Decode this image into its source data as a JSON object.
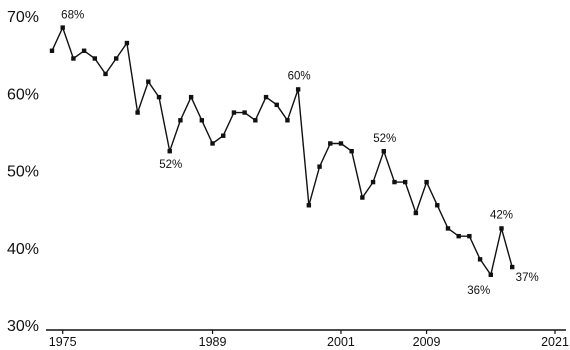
{
  "chart_data": {
    "type": "line",
    "title": "",
    "xlabel": "",
    "ylabel": "",
    "xlim": [
      1975,
      2021
    ],
    "ylim": [
      30,
      70
    ],
    "yticks": [
      30,
      40,
      50,
      60,
      70
    ],
    "ytick_labels": [
      "30%",
      "40%",
      "50%",
      "60%",
      "70%"
    ],
    "xticks": [
      1975,
      1989,
      2001,
      2009,
      2021
    ],
    "xtick_labels": [
      "1975",
      "1989",
      "2001",
      "2009",
      "2021"
    ],
    "grid": false,
    "legend": "none",
    "line_color": "#111111",
    "series": [
      {
        "x": [
          1974,
          1975,
          1976,
          1977,
          1978,
          1979,
          1980,
          1981,
          1982,
          1983,
          1984,
          1985,
          1986,
          1987,
          1988,
          1989,
          1990,
          1991,
          1992,
          1993,
          1994,
          1995,
          1996,
          1997,
          1998,
          1999,
          2000,
          2001,
          2002,
          2003,
          2004,
          2005,
          2006,
          2007,
          2008,
          2009,
          2010,
          2011,
          2012,
          2013,
          2014,
          2015,
          2016,
          2017,
          2018,
          2019,
          2020,
          2021
        ],
        "values": [
          65.5,
          68.5,
          64.5,
          65.5,
          64.5,
          62.5,
          64.5,
          66.5,
          57.5,
          61.5,
          59.5,
          52.5,
          56.5,
          59.5,
          56.5,
          53.5,
          54.5,
          57.5,
          57.5,
          56.5,
          59.5,
          58.5,
          56.5,
          60.5,
          45.5,
          50.5,
          53.5,
          53.5,
          52.5,
          46.5,
          48.5,
          52.5,
          48.5,
          48.5,
          44.5,
          48.5,
          45.5,
          42.5,
          41.5,
          41.5,
          38.5,
          36.5,
          42.5,
          37.5,
          null,
          null,
          null,
          null
        ]
      }
    ],
    "annotations": [
      {
        "text": "68%",
        "x": 1975,
        "y": 68.5
      },
      {
        "text": "52%",
        "x": 1985,
        "y": 52.5
      },
      {
        "text": "60%",
        "x": 1997,
        "y": 60.5
      },
      {
        "text": "52%",
        "x": 2005,
        "y": 52.5
      },
      {
        "text": "36%",
        "x": 2015,
        "y": 36.5
      },
      {
        "text": "42%",
        "x": 2016,
        "y": 42.5
      },
      {
        "text": "37%",
        "x": 2017,
        "y": 37.5
      }
    ]
  }
}
